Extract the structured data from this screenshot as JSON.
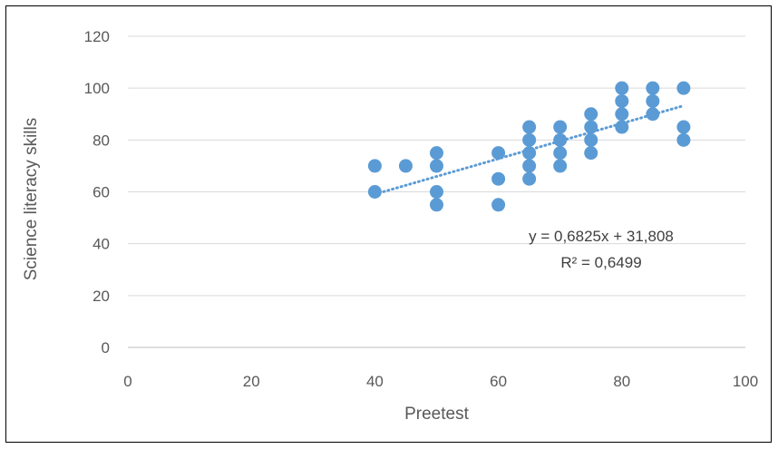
{
  "chart_data": {
    "type": "scatter",
    "xlabel": "Preetest",
    "ylabel": "Science literacy skills",
    "xlim": [
      0,
      100
    ],
    "ylim": [
      0,
      120
    ],
    "xticks": [
      "0",
      "20",
      "40",
      "60",
      "80",
      "100"
    ],
    "yticks": [
      "0",
      "20",
      "40",
      "60",
      "80",
      "100",
      "120"
    ],
    "grid": "horizontal",
    "points": [
      [
        40,
        70
      ],
      [
        40,
        60
      ],
      [
        45,
        70
      ],
      [
        50,
        75
      ],
      [
        50,
        70
      ],
      [
        50,
        60
      ],
      [
        50,
        55
      ],
      [
        60,
        75
      ],
      [
        60,
        65
      ],
      [
        60,
        55
      ],
      [
        65,
        85
      ],
      [
        65,
        80
      ],
      [
        65,
        75
      ],
      [
        65,
        70
      ],
      [
        65,
        65
      ],
      [
        70,
        85
      ],
      [
        70,
        80
      ],
      [
        70,
        75
      ],
      [
        70,
        70
      ],
      [
        75,
        90
      ],
      [
        75,
        85
      ],
      [
        75,
        80
      ],
      [
        75,
        75
      ],
      [
        80,
        100
      ],
      [
        80,
        95
      ],
      [
        80,
        90
      ],
      [
        80,
        85
      ],
      [
        85,
        100
      ],
      [
        85,
        95
      ],
      [
        85,
        90
      ],
      [
        90,
        100
      ],
      [
        90,
        85
      ],
      [
        90,
        80
      ]
    ],
    "trendline": {
      "type": "linear",
      "slope": 0.6825,
      "intercept": 31.808,
      "x_range": [
        40,
        90
      ]
    },
    "annotations": [
      "y = 0,6825x + 31,808",
      "R² = 0,6499"
    ],
    "colors": {
      "marker": "#5b9bd5",
      "trendline": "#5b9bd5",
      "grid": "#d9d9d9",
      "text": "#595959"
    }
  }
}
